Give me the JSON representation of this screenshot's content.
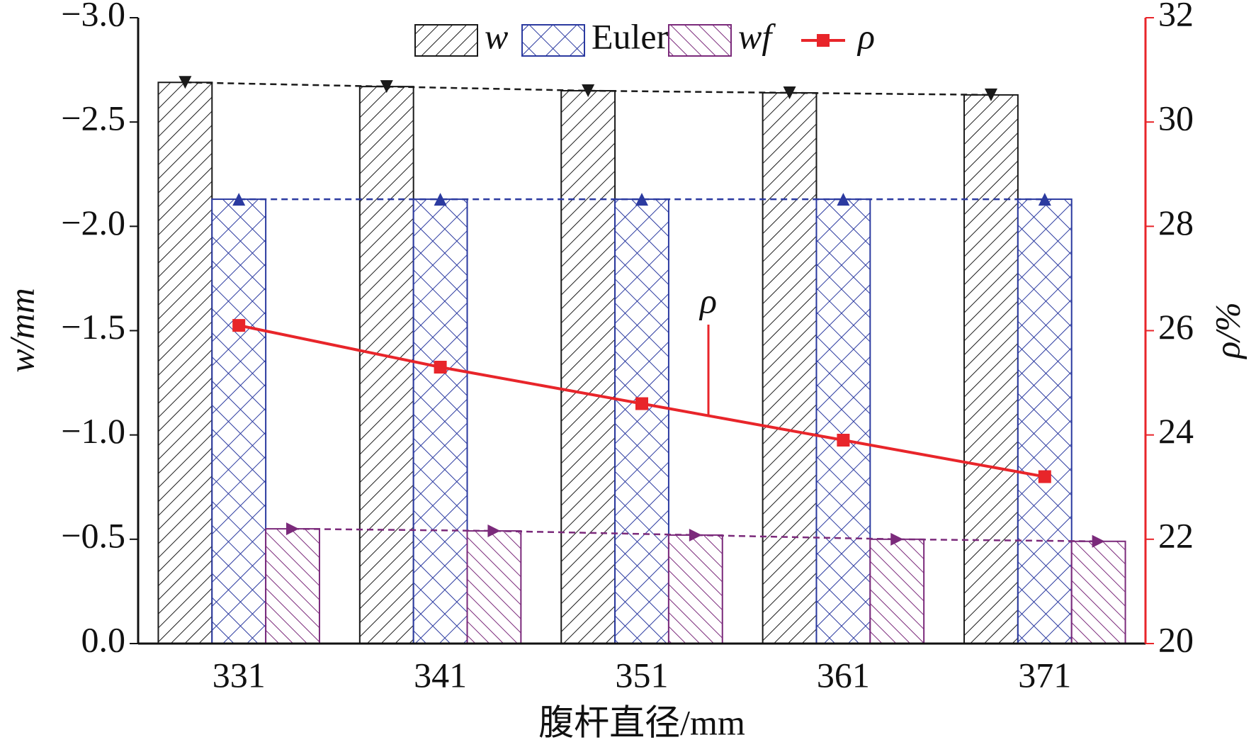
{
  "chart_data": {
    "type": "bar",
    "categories": [
      "331",
      "341",
      "351",
      "361",
      "371"
    ],
    "x_label": "腹杆直径/mm",
    "y_label": "w/mm",
    "y2_label": "ρ/%",
    "annotation": "ρ",
    "legend": "top",
    "series": [
      {
        "name": "w",
        "color": "#1a1a1a",
        "values": [
          -2.69,
          -2.67,
          -2.65,
          -2.64,
          -2.63
        ]
      },
      {
        "name": "Euler",
        "color": "#2b3aa0",
        "values": [
          -2.13,
          -2.13,
          -2.13,
          -2.13,
          -2.13
        ]
      },
      {
        "name": "wf",
        "color": "#7b2a7b",
        "values": [
          -0.55,
          -0.54,
          -0.52,
          -0.5,
          -0.49
        ]
      },
      {
        "name": "ρ",
        "color": "#e8252a",
        "type": "line",
        "axis": "y2",
        "values": [
          26.1,
          25.3,
          24.6,
          23.9,
          23.2
        ]
      }
    ],
    "ylim": [
      0,
      -3
    ],
    "yticks": [
      {
        "value": 0,
        "label": "0.0"
      },
      {
        "value": -0.5,
        "label": "−0.5"
      },
      {
        "value": -1,
        "label": "−1.0"
      },
      {
        "value": -1.5,
        "label": "−1.5"
      },
      {
        "value": -2,
        "label": "−2.0"
      },
      {
        "value": -2.5,
        "label": "−2.5"
      },
      {
        "value": -3,
        "label": "−3.0"
      }
    ],
    "y2lim": [
      20,
      32
    ],
    "y2ticks": [
      20,
      22,
      24,
      26,
      28,
      30,
      32
    ]
  }
}
